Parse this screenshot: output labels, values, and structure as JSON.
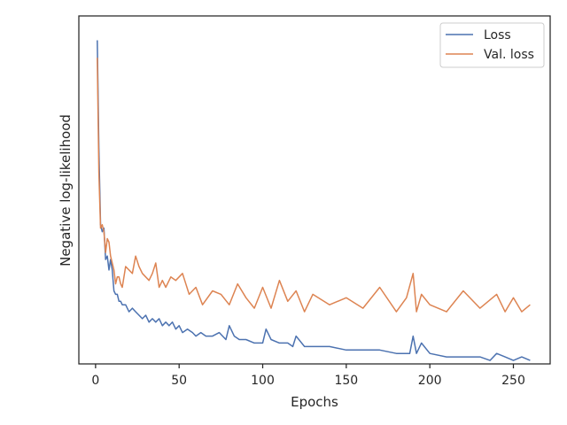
{
  "chart_data": {
    "type": "line",
    "title": "",
    "xlabel": "Epochs",
    "ylabel": "Negative log-likelihood",
    "xlim": [
      -10,
      272
    ],
    "ylim": [
      0,
      1
    ],
    "xticks": [
      0,
      50,
      100,
      150,
      200,
      250
    ],
    "y_tick_labels_visible": false,
    "grid": false,
    "legend_position": "top-right",
    "series": [
      {
        "name": "Loss",
        "color": "#4c72b0",
        "x": [
          1,
          2,
          3,
          4,
          5,
          6,
          7,
          8,
          9,
          10,
          11,
          12,
          13,
          14,
          15,
          16,
          18,
          20,
          22,
          24,
          26,
          28,
          30,
          32,
          34,
          36,
          38,
          40,
          42,
          44,
          46,
          48,
          50,
          52,
          55,
          58,
          60,
          63,
          66,
          70,
          74,
          78,
          80,
          83,
          86,
          90,
          95,
          100,
          102,
          105,
          110,
          115,
          118,
          120,
          125,
          130,
          140,
          150,
          160,
          170,
          180,
          188,
          190,
          192,
          195,
          200,
          210,
          220,
          230,
          236,
          240,
          245,
          250,
          255,
          260
        ],
        "y": [
          0.93,
          0.62,
          0.4,
          0.38,
          0.39,
          0.3,
          0.31,
          0.27,
          0.3,
          0.27,
          0.21,
          0.2,
          0.2,
          0.18,
          0.18,
          0.17,
          0.17,
          0.15,
          0.16,
          0.15,
          0.14,
          0.13,
          0.14,
          0.12,
          0.13,
          0.12,
          0.13,
          0.11,
          0.12,
          0.11,
          0.12,
          0.1,
          0.11,
          0.09,
          0.1,
          0.09,
          0.08,
          0.09,
          0.08,
          0.08,
          0.09,
          0.07,
          0.11,
          0.08,
          0.07,
          0.07,
          0.06,
          0.06,
          0.1,
          0.07,
          0.06,
          0.06,
          0.05,
          0.08,
          0.05,
          0.05,
          0.05,
          0.04,
          0.04,
          0.04,
          0.03,
          0.03,
          0.08,
          0.03,
          0.06,
          0.03,
          0.02,
          0.02,
          0.02,
          0.01,
          0.03,
          0.02,
          0.01,
          0.02,
          0.01
        ]
      },
      {
        "name": "Val. loss",
        "color": "#dd8452",
        "x": [
          1,
          2,
          3,
          4,
          5,
          6,
          7,
          8,
          9,
          10,
          11,
          12,
          13,
          14,
          15,
          16,
          17,
          18,
          20,
          22,
          24,
          26,
          28,
          30,
          32,
          34,
          36,
          38,
          40,
          42,
          45,
          48,
          52,
          56,
          60,
          64,
          70,
          75,
          80,
          85,
          90,
          95,
          100,
          105,
          110,
          115,
          120,
          125,
          130,
          140,
          150,
          160,
          170,
          180,
          186,
          190,
          192,
          195,
          200,
          210,
          220,
          230,
          240,
          245,
          250,
          255,
          260
        ],
        "y": [
          0.88,
          0.55,
          0.39,
          0.4,
          0.38,
          0.32,
          0.36,
          0.35,
          0.31,
          0.29,
          0.27,
          0.23,
          0.25,
          0.25,
          0.23,
          0.22,
          0.25,
          0.28,
          0.27,
          0.26,
          0.31,
          0.28,
          0.26,
          0.25,
          0.24,
          0.26,
          0.29,
          0.22,
          0.24,
          0.22,
          0.25,
          0.24,
          0.26,
          0.2,
          0.22,
          0.17,
          0.21,
          0.2,
          0.17,
          0.23,
          0.19,
          0.16,
          0.22,
          0.16,
          0.24,
          0.18,
          0.21,
          0.15,
          0.2,
          0.17,
          0.19,
          0.16,
          0.22,
          0.15,
          0.19,
          0.26,
          0.15,
          0.2,
          0.17,
          0.15,
          0.21,
          0.16,
          0.2,
          0.15,
          0.19,
          0.15,
          0.17
        ]
      }
    ]
  }
}
